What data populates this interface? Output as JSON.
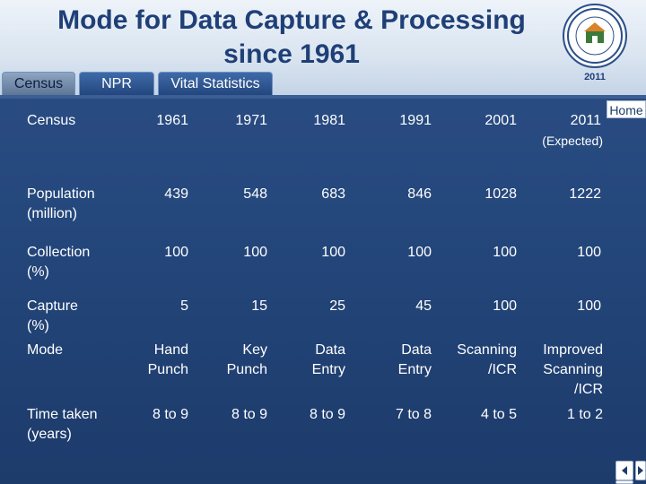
{
  "header": {
    "title_line1": "Mode for Data Capture & Processing",
    "title_line2": "since 1961",
    "logo_year": "2011"
  },
  "tabs": [
    {
      "label": "Census"
    },
    {
      "label": "NPR"
    },
    {
      "label": "Vital Statistics"
    }
  ],
  "home_label": "Home",
  "table": {
    "corner": "Census",
    "years": [
      "1961",
      "1971",
      "1981",
      "1991",
      "2001",
      "2011"
    ],
    "expected_note": "(Expected)",
    "rows": [
      {
        "label_l1": "Population",
        "label_l2": "(million)",
        "values": [
          "439",
          "548",
          "683",
          "846",
          "1028",
          "1222"
        ]
      },
      {
        "label_l1": "Collection",
        "label_l2": "(%)",
        "values": [
          "100",
          "100",
          "100",
          "100",
          "100",
          "100"
        ]
      },
      {
        "label_l1": "Capture",
        "label_l2": "(%)",
        "values": [
          "5",
          "15",
          "25",
          "45",
          "100",
          "100"
        ]
      },
      {
        "label_l1": "Mode",
        "label_l2": "",
        "values_l1": [
          "Hand",
          "Key",
          "Data",
          "Data",
          "Scanning",
          "Improved"
        ],
        "values_l2": [
          "Punch",
          "Punch",
          "Entry",
          "Entry",
          "/ICR",
          "Scanning"
        ],
        "values_l3": [
          "",
          "",
          "",
          "",
          "",
          "/ICR"
        ]
      },
      {
        "label_l1": "Time taken",
        "label_l2": "(years)",
        "values": [
          "8 to 9",
          "8 to 9",
          "8 to 9",
          "7 to 8",
          "4 to 5",
          "1 to 2"
        ]
      }
    ]
  },
  "icons": {
    "logo": "census-of-india-logo",
    "prev": "prev-slide-icon",
    "next": "next-slide-icon"
  }
}
